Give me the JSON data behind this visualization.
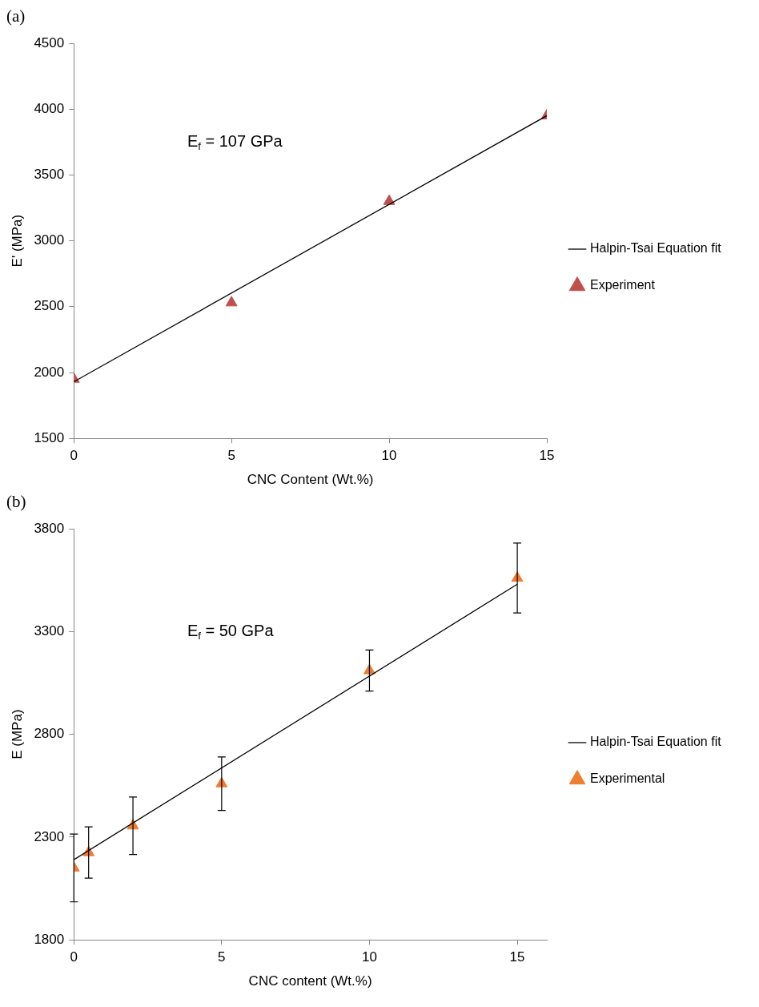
{
  "chart_data": [
    {
      "type": "scatter",
      "title": "(a)",
      "xlabel": "CNC Content (Wt.%)",
      "ylabel": "E' (MPa)",
      "xlim": [
        0,
        15
      ],
      "xticks": [
        0,
        5,
        10,
        15
      ],
      "ylim": [
        1500,
        4500
      ],
      "yticks": [
        1500,
        2000,
        2500,
        3000,
        3500,
        4000,
        4500
      ],
      "grid": false,
      "legend": "right",
      "annotations": [
        "E$_{f}$ = 107 GPa"
      ],
      "series": [
        {
          "name": "Experiment",
          "type": "scatter",
          "marker": "triangle",
          "color": "#c0504d",
          "x": [
            0,
            5,
            10,
            15
          ],
          "values": [
            1950,
            2530,
            3300,
            3950
          ]
        },
        {
          "name": "Halpin-Tsai Equation fit",
          "type": "line",
          "marker": "none",
          "color": "#000000",
          "x": [
            0,
            15
          ],
          "values": [
            1930,
            3950
          ]
        }
      ]
    },
    {
      "type": "scatter",
      "title": "(b)",
      "xlabel": "CNC content (Wt.%)",
      "ylabel": "E (MPa)",
      "xlim": [
        0,
        16
      ],
      "xticks": [
        0,
        5,
        10,
        15
      ],
      "ylim": [
        1800,
        3800
      ],
      "yticks": [
        1800,
        2300,
        2800,
        3300,
        3800
      ],
      "grid": false,
      "legend": "right",
      "annotations": [
        "E$_{f}$ = 50 GPa"
      ],
      "series": [
        {
          "name": "Experimental",
          "type": "scatter",
          "marker": "triangle",
          "color": "#ed7d31",
          "x": [
            0,
            0.5,
            2,
            5,
            10,
            15
          ],
          "values": [
            2150,
            2225,
            2355,
            2560,
            3110,
            3560
          ],
          "errors": [
            165,
            125,
            140,
            130,
            100,
            170
          ]
        },
        {
          "name": "Halpin-Tsai Equation fit",
          "type": "line",
          "marker": "none",
          "color": "#000000",
          "x": [
            0,
            15
          ],
          "values": [
            2190,
            3530
          ]
        }
      ]
    }
  ]
}
